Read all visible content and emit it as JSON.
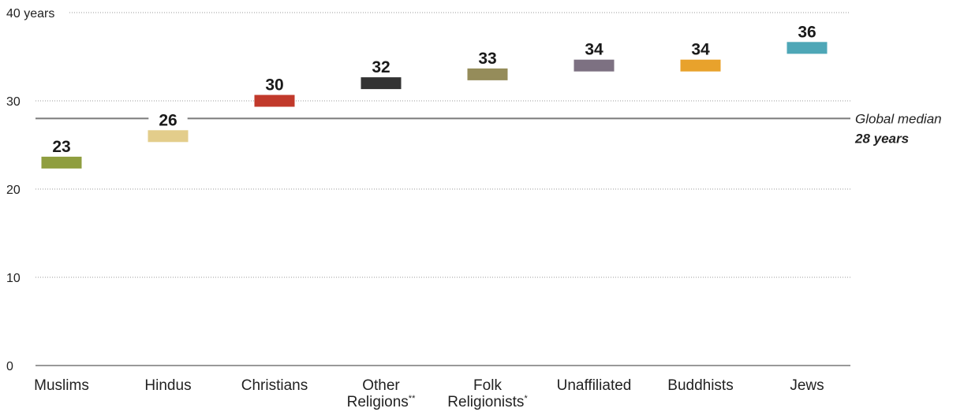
{
  "chart_data": {
    "type": "bar",
    "categories": [
      [
        "Muslims"
      ],
      [
        "Hindus"
      ],
      [
        "Christians"
      ],
      [
        "Other",
        "Religions"
      ],
      [
        "Folk",
        "Religionists"
      ],
      [
        "Unaffiliated"
      ],
      [
        "Buddhists"
      ],
      [
        "Jews"
      ]
    ],
    "category_footnotes": [
      "",
      "",
      "",
      "**",
      "*",
      "",
      "",
      ""
    ],
    "values": [
      23,
      26,
      30,
      32,
      33,
      34,
      34,
      36
    ],
    "value_labels": [
      "23",
      "26",
      "30",
      "32",
      "33",
      "34",
      "34",
      "36"
    ],
    "colors": [
      "#8f9e3f",
      "#e3cd8b",
      "#c1392b",
      "#333333",
      "#958c5a",
      "#7d7182",
      "#e8a22c",
      "#4ea7b7"
    ],
    "ylim": [
      0,
      40
    ],
    "y_ticks": [
      0,
      10,
      20,
      30,
      40
    ],
    "y_tick_labels": [
      "0",
      "10",
      "20",
      "30",
      "40 years"
    ],
    "grid": true,
    "reference_line": {
      "value": 28,
      "label": "Global median",
      "value_label": "28 years"
    }
  }
}
